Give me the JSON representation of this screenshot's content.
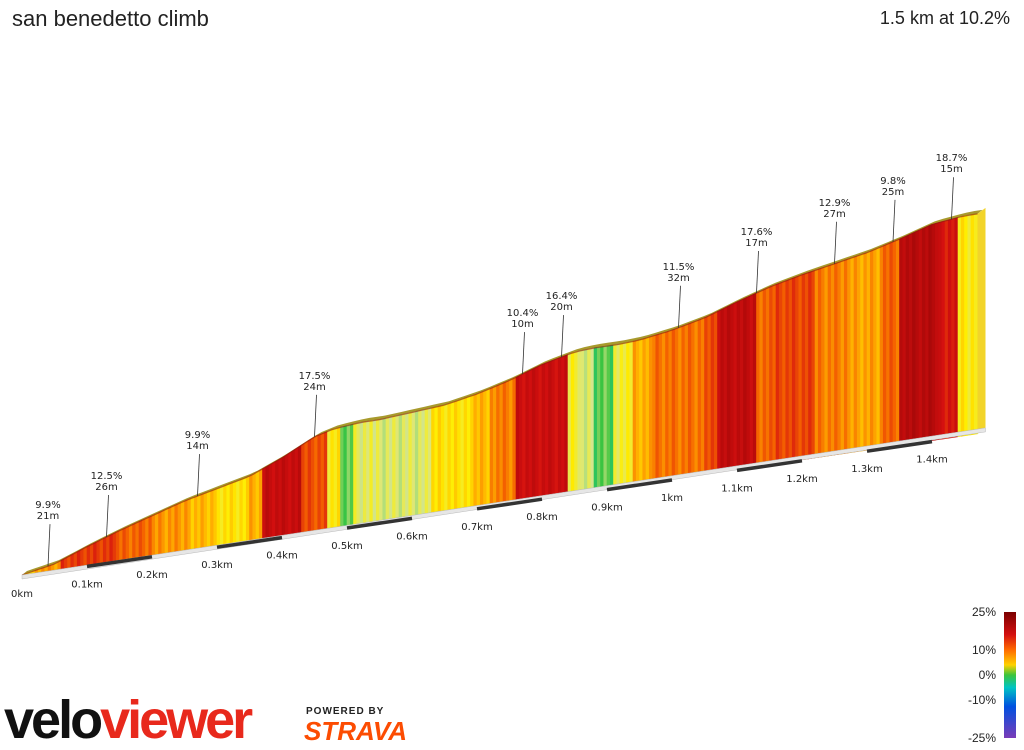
{
  "header": {
    "title": "san benedetto climb",
    "summary": "1.5 km at 10.2%"
  },
  "chart_data": {
    "type": "area",
    "title": "san benedetto climb",
    "subtitle": "1.5 km at 10.2%",
    "distance_unit": "km",
    "total_distance_km": 1.5,
    "avg_gradient_pct": 10.2,
    "x_ticks": [
      {
        "km": 0.0,
        "label": "0km"
      },
      {
        "km": 0.1,
        "label": "0.1km"
      },
      {
        "km": 0.2,
        "label": "0.2km"
      },
      {
        "km": 0.3,
        "label": "0.3km"
      },
      {
        "km": 0.4,
        "label": "0.4km"
      },
      {
        "km": 0.5,
        "label": "0.5km"
      },
      {
        "km": 0.6,
        "label": "0.6km"
      },
      {
        "km": 0.7,
        "label": "0.7km"
      },
      {
        "km": 0.8,
        "label": "0.8km"
      },
      {
        "km": 0.9,
        "label": "0.9km"
      },
      {
        "km": 1.0,
        "label": "1km"
      },
      {
        "km": 1.1,
        "label": "1.1km"
      },
      {
        "km": 1.2,
        "label": "1.2km"
      },
      {
        "km": 1.3,
        "label": "1.3km"
      },
      {
        "km": 1.4,
        "label": "1.4km"
      }
    ],
    "profile": [
      {
        "km": 0.0,
        "elev": 0
      },
      {
        "km": 0.05,
        "elev": 5
      },
      {
        "km": 0.1,
        "elev": 15
      },
      {
        "km": 0.15,
        "elev": 24
      },
      {
        "km": 0.2,
        "elev": 32
      },
      {
        "km": 0.25,
        "elev": 40
      },
      {
        "km": 0.3,
        "elev": 46
      },
      {
        "km": 0.35,
        "elev": 52
      },
      {
        "km": 0.4,
        "elev": 63
      },
      {
        "km": 0.45,
        "elev": 76
      },
      {
        "km": 0.48,
        "elev": 80
      },
      {
        "km": 0.52,
        "elev": 82
      },
      {
        "km": 0.55,
        "elev": 82
      },
      {
        "km": 0.6,
        "elev": 84
      },
      {
        "km": 0.65,
        "elev": 86
      },
      {
        "km": 0.7,
        "elev": 91
      },
      {
        "km": 0.75,
        "elev": 98
      },
      {
        "km": 0.8,
        "elev": 107
      },
      {
        "km": 0.85,
        "elev": 113
      },
      {
        "km": 0.88,
        "elev": 114
      },
      {
        "km": 0.92,
        "elev": 114
      },
      {
        "km": 0.95,
        "elev": 115
      },
      {
        "km": 1.0,
        "elev": 119
      },
      {
        "km": 1.05,
        "elev": 125
      },
      {
        "km": 1.1,
        "elev": 134
      },
      {
        "km": 1.15,
        "elev": 142
      },
      {
        "km": 1.2,
        "elev": 148
      },
      {
        "km": 1.25,
        "elev": 153
      },
      {
        "km": 1.3,
        "elev": 158
      },
      {
        "km": 1.35,
        "elev": 165
      },
      {
        "km": 1.4,
        "elev": 173
      },
      {
        "km": 1.45,
        "elev": 176
      },
      {
        "km": 1.47,
        "elev": 176
      }
    ],
    "gradient_segments": [
      {
        "from_km": 0.0,
        "to_km": 0.02,
        "grade": 6
      },
      {
        "from_km": 0.02,
        "to_km": 0.06,
        "grade": 9.9
      },
      {
        "from_km": 0.06,
        "to_km": 0.15,
        "grade": 14
      },
      {
        "from_km": 0.15,
        "to_km": 0.2,
        "grade": 12
      },
      {
        "from_km": 0.2,
        "to_km": 0.26,
        "grade": 10
      },
      {
        "from_km": 0.26,
        "to_km": 0.3,
        "grade": 8.5
      },
      {
        "from_km": 0.3,
        "to_km": 0.35,
        "grade": 6.5
      },
      {
        "from_km": 0.35,
        "to_km": 0.37,
        "grade": 9
      },
      {
        "from_km": 0.37,
        "to_km": 0.43,
        "grade": 17.5
      },
      {
        "from_km": 0.43,
        "to_km": 0.47,
        "grade": 13
      },
      {
        "from_km": 0.47,
        "to_km": 0.49,
        "grade": 6
      },
      {
        "from_km": 0.49,
        "to_km": 0.51,
        "grade": 1
      },
      {
        "from_km": 0.51,
        "to_km": 0.54,
        "grade": 4
      },
      {
        "from_km": 0.54,
        "to_km": 0.63,
        "grade": 3.5
      },
      {
        "from_km": 0.63,
        "to_km": 0.69,
        "grade": 6.5
      },
      {
        "from_km": 0.69,
        "to_km": 0.72,
        "grade": 8.5
      },
      {
        "from_km": 0.72,
        "to_km": 0.76,
        "grade": 11
      },
      {
        "from_km": 0.76,
        "to_km": 0.84,
        "grade": 17
      },
      {
        "from_km": 0.84,
        "to_km": 0.86,
        "grade": 5
      },
      {
        "from_km": 0.86,
        "to_km": 0.88,
        "grade": 3
      },
      {
        "from_km": 0.88,
        "to_km": 0.91,
        "grade": 0.5
      },
      {
        "from_km": 0.91,
        "to_km": 0.94,
        "grade": 5
      },
      {
        "from_km": 0.94,
        "to_km": 0.97,
        "grade": 9
      },
      {
        "from_km": 0.97,
        "to_km": 1.05,
        "grade": 11.5
      },
      {
        "from_km": 1.05,
        "to_km": 1.07,
        "grade": 13
      },
      {
        "from_km": 1.07,
        "to_km": 1.13,
        "grade": 18
      },
      {
        "from_km": 1.13,
        "to_km": 1.16,
        "grade": 12
      },
      {
        "from_km": 1.16,
        "to_km": 1.22,
        "grade": 13.5
      },
      {
        "from_km": 1.22,
        "to_km": 1.27,
        "grade": 11
      },
      {
        "from_km": 1.27,
        "to_km": 1.32,
        "grade": 9.5
      },
      {
        "from_km": 1.32,
        "to_km": 1.35,
        "grade": 12
      },
      {
        "from_km": 1.35,
        "to_km": 1.41,
        "grade": 19
      },
      {
        "from_km": 1.41,
        "to_km": 1.44,
        "grade": 16
      },
      {
        "from_km": 1.44,
        "to_km": 1.47,
        "grade": 6
      }
    ],
    "annotations": [
      {
        "km": 0.04,
        "grade": "9.9%",
        "length": "21m"
      },
      {
        "km": 0.13,
        "grade": "12.5%",
        "length": "26m"
      },
      {
        "km": 0.27,
        "grade": "9.9%",
        "length": "14m"
      },
      {
        "km": 0.45,
        "grade": "17.5%",
        "length": "24m"
      },
      {
        "km": 0.77,
        "grade": "10.4%",
        "length": "10m"
      },
      {
        "km": 0.83,
        "grade": "16.4%",
        "length": "20m"
      },
      {
        "km": 1.01,
        "grade": "11.5%",
        "length": "32m"
      },
      {
        "km": 1.13,
        "grade": "17.6%",
        "length": "17m"
      },
      {
        "km": 1.25,
        "grade": "12.9%",
        "length": "27m"
      },
      {
        "km": 1.34,
        "grade": "9.8%",
        "length": "25m"
      },
      {
        "km": 1.43,
        "grade": "18.7%",
        "length": "15m"
      }
    ],
    "legend": {
      "placement": "bottom-right",
      "labels": [
        {
          "value": 25,
          "label": "25%"
        },
        {
          "value": 10,
          "label": "10%"
        },
        {
          "value": 0,
          "label": "0%"
        },
        {
          "value": -10,
          "label": "-10%"
        },
        {
          "value": -25,
          "label": "-25%"
        }
      ]
    }
  },
  "branding": {
    "velo": "velo",
    "viewer": "viewer",
    "powered_by": "POWERED BY",
    "strava": "STRAVA"
  }
}
